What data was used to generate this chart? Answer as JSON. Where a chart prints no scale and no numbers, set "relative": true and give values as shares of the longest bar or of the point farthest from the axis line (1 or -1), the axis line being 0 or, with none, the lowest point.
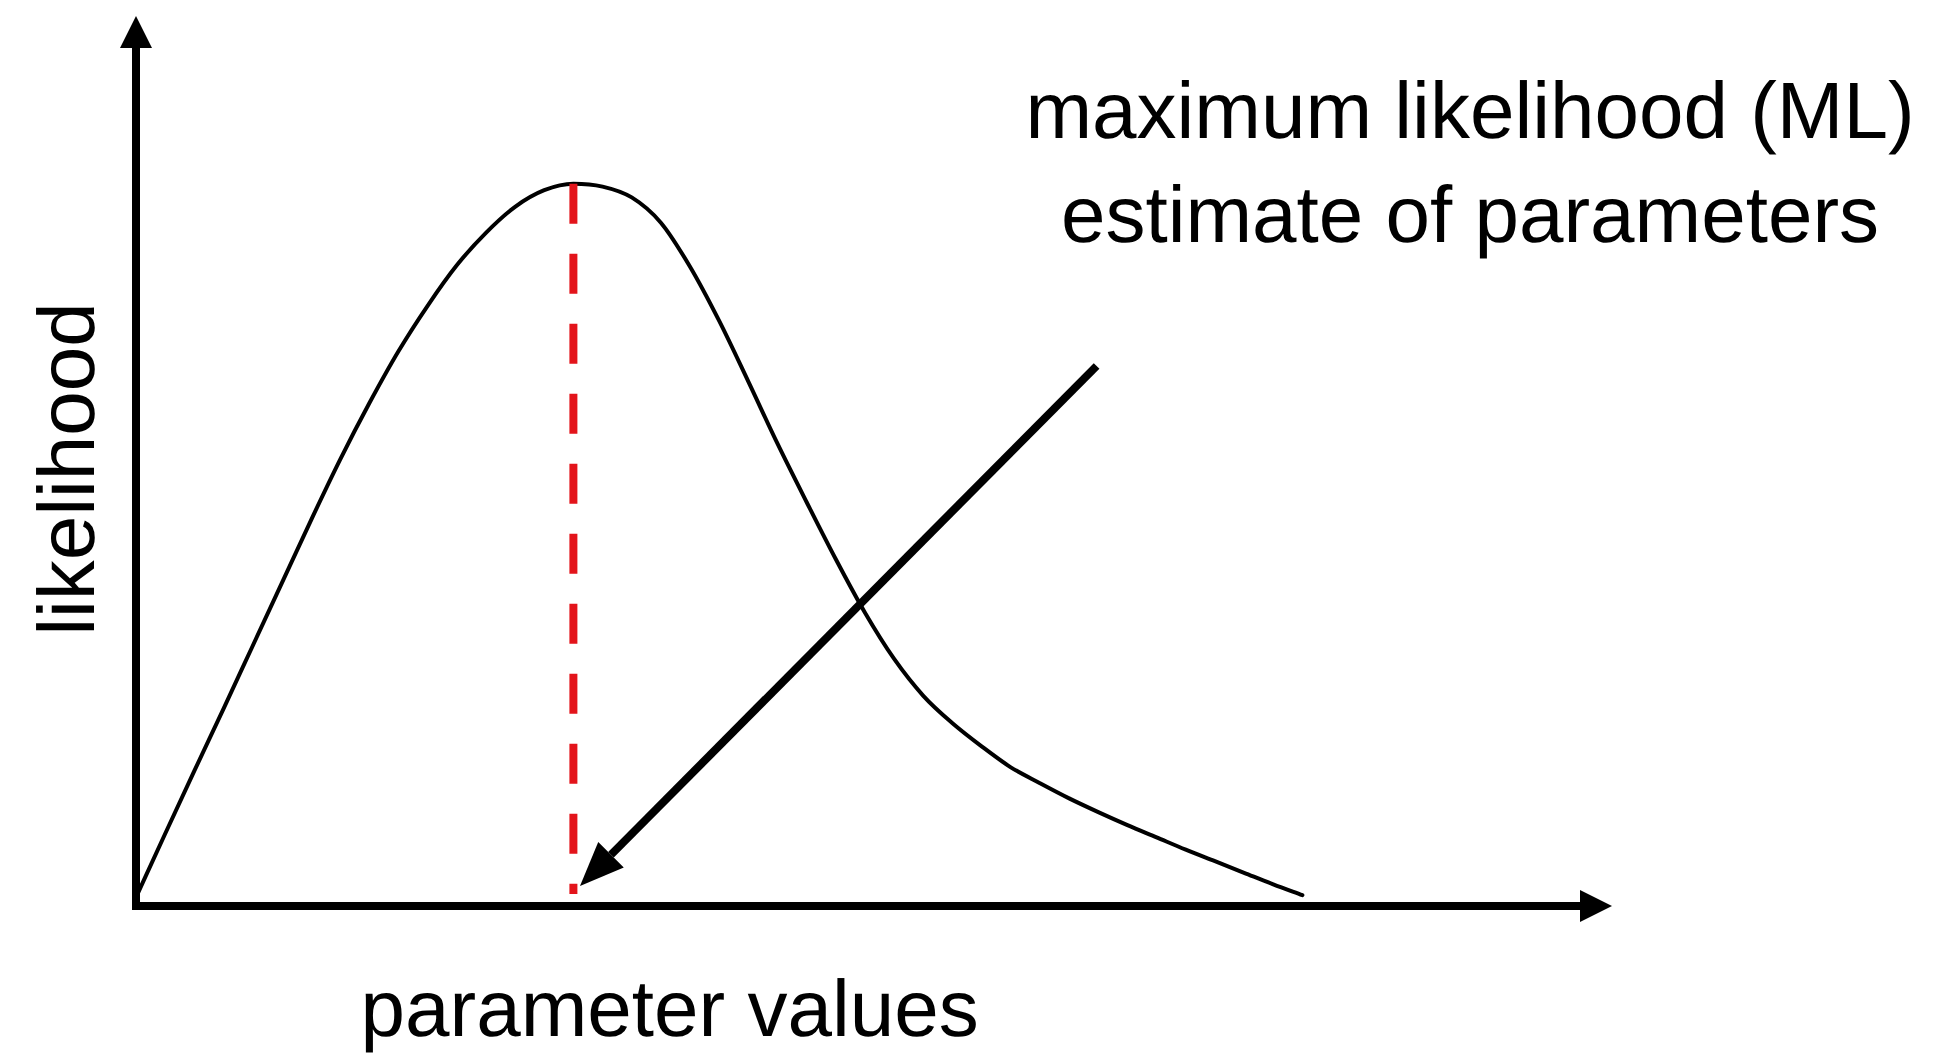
{
  "chart_data": {
    "type": "line",
    "xlabel": "parameter values",
    "ylabel": "likelihood",
    "annotations": [
      "maximum likelihood (ML) estimate of parameters"
    ],
    "categories": [
      null,
      null,
      null,
      null,
      null,
      null,
      null,
      null,
      null,
      null,
      null,
      null,
      null,
      null,
      null,
      null,
      null,
      null,
      null,
      null,
      null,
      null,
      null,
      null,
      null,
      null,
      null,
      null,
      null,
      null,
      null,
      null,
      null,
      null,
      null,
      null,
      null,
      null,
      null,
      null,
      null,
      null,
      null,
      null,
      null,
      null,
      null,
      null,
      null,
      null,
      null
    ],
    "series": [
      {
        "color": "#000000",
        "values": [
          0.012,
          0.1,
          0.187,
          0.273,
          0.36,
          0.447,
          0.534,
          0.618,
          0.696,
          0.768,
          0.831,
          0.887,
          0.932,
          0.968,
          0.991,
          1,
          0.996,
          0.981,
          0.946,
          0.885,
          0.81,
          0.726,
          0.64,
          0.559,
          0.48,
          0.406,
          0.342,
          0.291,
          0.253,
          0.221,
          0.192,
          0.17,
          0.149,
          0.13,
          0.112,
          0.095,
          0.078,
          0.062,
          0.046,
          0.03,
          0.015,
          null,
          null,
          null,
          null,
          null,
          null,
          null,
          null,
          null,
          null
        ]
      }
    ],
    "relative": true,
    "marker": "none",
    "tick_labels": false
  }
}
